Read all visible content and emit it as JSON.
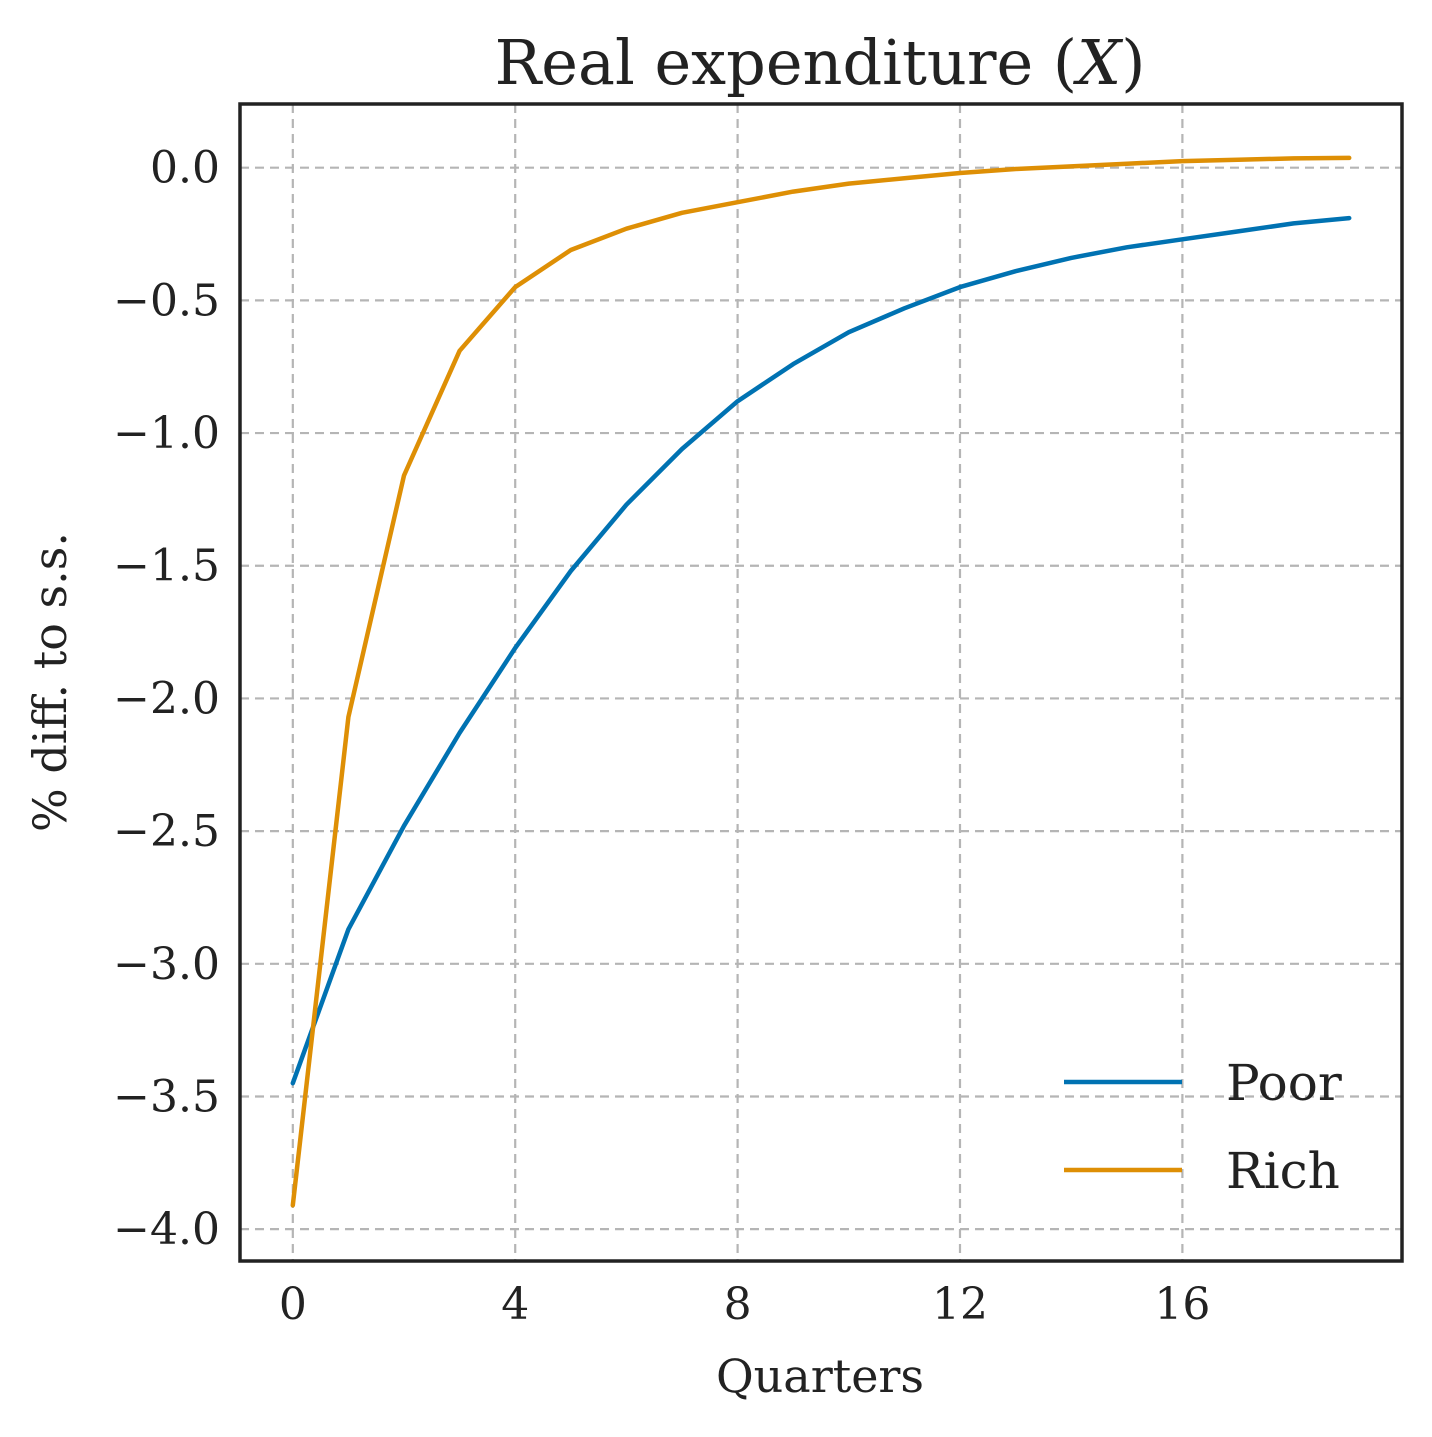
{
  "chart_data": {
    "type": "line",
    "title": "Real expenditure (X)",
    "title_parts": {
      "prefix": "Real expenditure (",
      "symbol": "X",
      "suffix": ")"
    },
    "xlabel": "Quarters",
    "ylabel": "% diff. to s.s.",
    "xlim": [
      -0.95,
      19.95
    ],
    "ylim": [
      -4.12,
      0.24
    ],
    "xticks": [
      0,
      4,
      8,
      12,
      16
    ],
    "xtick_labels": [
      "0",
      "4",
      "8",
      "12",
      "16"
    ],
    "yticks": [
      0.0,
      -0.5,
      -1.0,
      -1.5,
      -2.0,
      -2.5,
      -3.0,
      -3.5,
      -4.0
    ],
    "ytick_labels": [
      "0.0",
      "−0.5",
      "−1.0",
      "−1.5",
      "−2.0",
      "−2.5",
      "−3.0",
      "−3.5",
      "−4.0"
    ],
    "grid": true,
    "legend_position": "bottom-right",
    "x": [
      0,
      1,
      2,
      3,
      4,
      5,
      6,
      7,
      8,
      9,
      10,
      11,
      12,
      13,
      14,
      15,
      16,
      17,
      18,
      19
    ],
    "series": [
      {
        "name": "Poor",
        "color": "#0072b2",
        "values": [
          -3.45,
          -2.87,
          -2.48,
          -2.13,
          -1.81,
          -1.52,
          -1.27,
          -1.06,
          -0.88,
          -0.74,
          -0.62,
          -0.53,
          -0.45,
          -0.39,
          -0.34,
          -0.3,
          -0.27,
          -0.24,
          -0.21,
          -0.19
        ]
      },
      {
        "name": "Rich",
        "color": "#de8f05",
        "values": [
          -3.91,
          -2.07,
          -1.16,
          -0.69,
          -0.45,
          -0.31,
          -0.23,
          -0.17,
          -0.13,
          -0.09,
          -0.06,
          -0.04,
          -0.02,
          -0.005,
          0.005,
          0.015,
          0.025,
          0.03,
          0.035,
          0.037
        ]
      }
    ]
  }
}
